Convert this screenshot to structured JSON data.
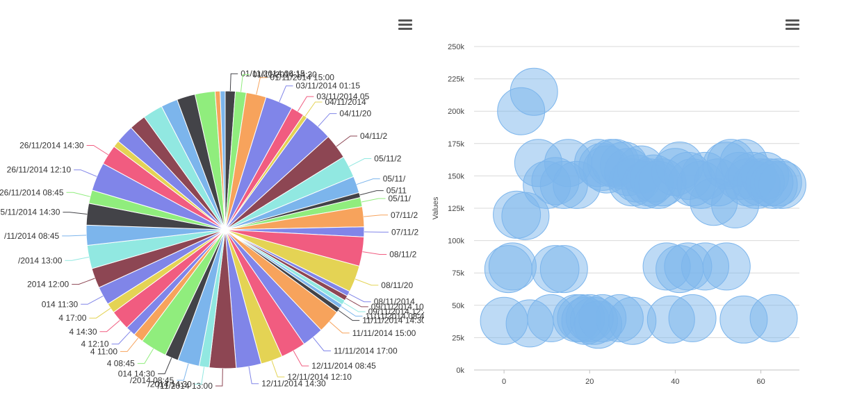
{
  "pie_chart": {
    "menu_icon": "hamburger-menu-icon",
    "chart_data": {
      "type": "pie",
      "slices": [
        {
          "label": "01/11/2014 06:15",
          "value": 1.2,
          "color": "#434348"
        },
        {
          "label": "01/11/2014 14:30",
          "value": 1.3,
          "color": "#90ed7d"
        },
        {
          "label": "01/11/2014 15:00",
          "value": 2.4,
          "color": "#f7a35c"
        },
        {
          "label": "03/11/2014 01:15",
          "value": 3.3,
          "color": "#8085e9"
        },
        {
          "label": "03/11/2014 05",
          "value": 1.6,
          "color": "#f15c80"
        },
        {
          "label": "04/11/2014",
          "value": 0.5,
          "color": "#e4d354"
        },
        {
          "label": "04/11/20",
          "value": 3.4,
          "color": "#8085e8"
        },
        {
          "label": "04/11/2",
          "value": 3.0,
          "color": "#8d4653"
        },
        {
          "label": "05/11/2",
          "value": 2.6,
          "color": "#91e8e1"
        },
        {
          "label": "05/11/",
          "value": 2.0,
          "color": "#7cb5ec"
        },
        {
          "label": "05/11",
          "value": 0.6,
          "color": "#434348"
        },
        {
          "label": "05/11/",
          "value": 1.1,
          "color": "#90ed7d"
        },
        {
          "label": "07/11/2",
          "value": 2.4,
          "color": "#f7a35c"
        },
        {
          "label": "07/11/2",
          "value": 1.2,
          "color": "#8085e9"
        },
        {
          "label": "08/11/2",
          "value": 3.5,
          "color": "#f15c80"
        },
        {
          "label": "08/11/20",
          "value": 3.2,
          "color": "#e4d354"
        },
        {
          "label": "08/11/2014",
          "value": 0.6,
          "color": "#8085e8"
        },
        {
          "label": "09/11/2014 10",
          "value": 0.6,
          "color": "#8d4653"
        },
        {
          "label": "09/11/2014 12:45",
          "value": 0.6,
          "color": "#91e8e1"
        },
        {
          "label": "11/11/2014 08:45",
          "value": 0.5,
          "color": "#7cb5ec"
        },
        {
          "label": "11/11/2014 14:30",
          "value": 0.6,
          "color": "#434348"
        },
        {
          "label": "11/11/2014 15:00",
          "value": 2.8,
          "color": "#f7a35c"
        },
        {
          "label": "11/11/2014 17:00",
          "value": 2.6,
          "color": "#8085e9"
        },
        {
          "label": "12/11/2014 08:45",
          "value": 3.0,
          "color": "#f15c80"
        },
        {
          "label": "12/11/2014 12:10",
          "value": 2.6,
          "color": "#e4d354"
        },
        {
          "label": "12/11/2014 14:30",
          "value": 3.0,
          "color": "#8085e8"
        },
        {
          "label": "/11/2014 13:00",
          "value": 3.2,
          "color": "#8d4653"
        },
        {
          "label": "/2014 14:30",
          "value": 1.2,
          "color": "#91e8e1"
        },
        {
          "label": "/2014 08:45",
          "value": 2.6,
          "color": "#7cb5ec"
        },
        {
          "label": "014 14:30",
          "value": 1.6,
          "color": "#434348"
        },
        {
          "label": "4 08:45",
          "value": 3.2,
          "color": "#90ed7d"
        },
        {
          "label": "4 11:00",
          "value": 1.2,
          "color": "#f7a35c"
        },
        {
          "label": "4 12:10",
          "value": 1.2,
          "color": "#8085e9"
        },
        {
          "label": "4 14:30",
          "value": 2.4,
          "color": "#f15c80"
        },
        {
          "label": "4 17:00",
          "value": 1.2,
          "color": "#e4d354"
        },
        {
          "label": "014 11:30",
          "value": 2.2,
          "color": "#8085e8"
        },
        {
          "label": "2014 12:00",
          "value": 2.4,
          "color": "#8d4653"
        },
        {
          "label": "/2014 13:00",
          "value": 2.8,
          "color": "#91e8e1"
        },
        {
          "label": "/11/2014 08:45",
          "value": 2.4,
          "color": "#7cb5ec"
        },
        {
          "label": "25/11/2014 14:30",
          "value": 2.6,
          "color": "#434348"
        },
        {
          "label": "26/11/2014 08:45",
          "value": 1.6,
          "color": "#90ed7d"
        },
        {
          "label": "26/11/2014 12:10",
          "value": 3.4,
          "color": "#8085e9"
        },
        {
          "label": "26/11/2014 14:30",
          "value": 2.4,
          "color": "#f15c80"
        },
        {
          "label": "",
          "value": 0.8,
          "color": "#e4d354"
        },
        {
          "label": "",
          "value": 2.2,
          "color": "#8085e8"
        },
        {
          "label": "",
          "value": 2.0,
          "color": "#8d4653"
        },
        {
          "label": "",
          "value": 2.4,
          "color": "#91e8e1"
        },
        {
          "label": "",
          "value": 2.0,
          "color": "#7cb5ec"
        },
        {
          "label": "",
          "value": 2.2,
          "color": "#434348"
        },
        {
          "label": "",
          "value": 2.4,
          "color": "#90ed7d"
        },
        {
          "label": "",
          "value": 0.6,
          "color": "#f7a35c"
        },
        {
          "label": "",
          "value": 0.6,
          "color": "#7cb5ec"
        }
      ]
    }
  },
  "bubble_chart": {
    "menu_icon": "hamburger-menu-icon",
    "chart_data": {
      "type": "scatter",
      "ylabel": "Values",
      "xlim": [
        -7,
        69
      ],
      "ylim": [
        0,
        250000
      ],
      "x_ticks": [
        0,
        20,
        40,
        60
      ],
      "y_ticks": [
        0,
        25000,
        50000,
        75000,
        100000,
        125000,
        150000,
        175000,
        200000,
        225000,
        250000
      ],
      "y_tick_labels": [
        "0k",
        "25k",
        "50k",
        "75k",
        "100k",
        "125k",
        "150k",
        "175k",
        "200k",
        "225k",
        "250k"
      ],
      "bubble_color": "#7cb5ec",
      "points": [
        {
          "x": 4,
          "y": 200000
        },
        {
          "x": 7,
          "y": 215000
        },
        {
          "x": 3,
          "y": 120000
        },
        {
          "x": 5,
          "y": 119000
        },
        {
          "x": 8,
          "y": 160000
        },
        {
          "x": 10,
          "y": 143000
        },
        {
          "x": 12,
          "y": 146000
        },
        {
          "x": 14,
          "y": 143000
        },
        {
          "x": 15,
          "y": 160000
        },
        {
          "x": 17,
          "y": 143000
        },
        {
          "x": 22,
          "y": 160000
        },
        {
          "x": 23,
          "y": 157000
        },
        {
          "x": 24,
          "y": 155000
        },
        {
          "x": 25,
          "y": 160000
        },
        {
          "x": 26,
          "y": 160000
        },
        {
          "x": 28,
          "y": 158000
        },
        {
          "x": 29,
          "y": 153000
        },
        {
          "x": 30,
          "y": 145000
        },
        {
          "x": 31,
          "y": 148000
        },
        {
          "x": 32,
          "y": 155000
        },
        {
          "x": 33,
          "y": 143000
        },
        {
          "x": 34,
          "y": 145000
        },
        {
          "x": 35,
          "y": 148000
        },
        {
          "x": 36,
          "y": 143000
        },
        {
          "x": 37,
          "y": 145000
        },
        {
          "x": 40,
          "y": 153000
        },
        {
          "x": 41,
          "y": 158000
        },
        {
          "x": 43,
          "y": 150000
        },
        {
          "x": 44,
          "y": 145000
        },
        {
          "x": 46,
          "y": 143000
        },
        {
          "x": 47,
          "y": 150000
        },
        {
          "x": 49,
          "y": 130000
        },
        {
          "x": 50,
          "y": 145000
        },
        {
          "x": 52,
          "y": 158000
        },
        {
          "x": 53,
          "y": 160000
        },
        {
          "x": 54,
          "y": 128000
        },
        {
          "x": 55,
          "y": 150000
        },
        {
          "x": 56,
          "y": 160000
        },
        {
          "x": 57,
          "y": 145000
        },
        {
          "x": 58,
          "y": 150000
        },
        {
          "x": 59,
          "y": 143000
        },
        {
          "x": 60,
          "y": 145000
        },
        {
          "x": 61,
          "y": 150000
        },
        {
          "x": 62,
          "y": 145000
        },
        {
          "x": 63,
          "y": 143000
        },
        {
          "x": 64,
          "y": 145000
        },
        {
          "x": 65,
          "y": 143000
        },
        {
          "x": 1,
          "y": 78000
        },
        {
          "x": 2,
          "y": 80000
        },
        {
          "x": 12,
          "y": 78000
        },
        {
          "x": 14,
          "y": 78000
        },
        {
          "x": 38,
          "y": 80000
        },
        {
          "x": 41,
          "y": 78000
        },
        {
          "x": 43,
          "y": 80000
        },
        {
          "x": 47,
          "y": 80000
        },
        {
          "x": 52,
          "y": 80000
        },
        {
          "x": 0,
          "y": 38000
        },
        {
          "x": 6,
          "y": 36000
        },
        {
          "x": 11,
          "y": 40000
        },
        {
          "x": 17,
          "y": 40000
        },
        {
          "x": 18,
          "y": 40000
        },
        {
          "x": 19,
          "y": 38000
        },
        {
          "x": 20,
          "y": 40000
        },
        {
          "x": 21,
          "y": 38000
        },
        {
          "x": 22,
          "y": 35000
        },
        {
          "x": 23,
          "y": 40000
        },
        {
          "x": 27,
          "y": 40000
        },
        {
          "x": 30,
          "y": 38000
        },
        {
          "x": 39,
          "y": 39000
        },
        {
          "x": 44,
          "y": 40000
        },
        {
          "x": 56,
          "y": 39000
        },
        {
          "x": 63,
          "y": 40000
        }
      ]
    }
  }
}
